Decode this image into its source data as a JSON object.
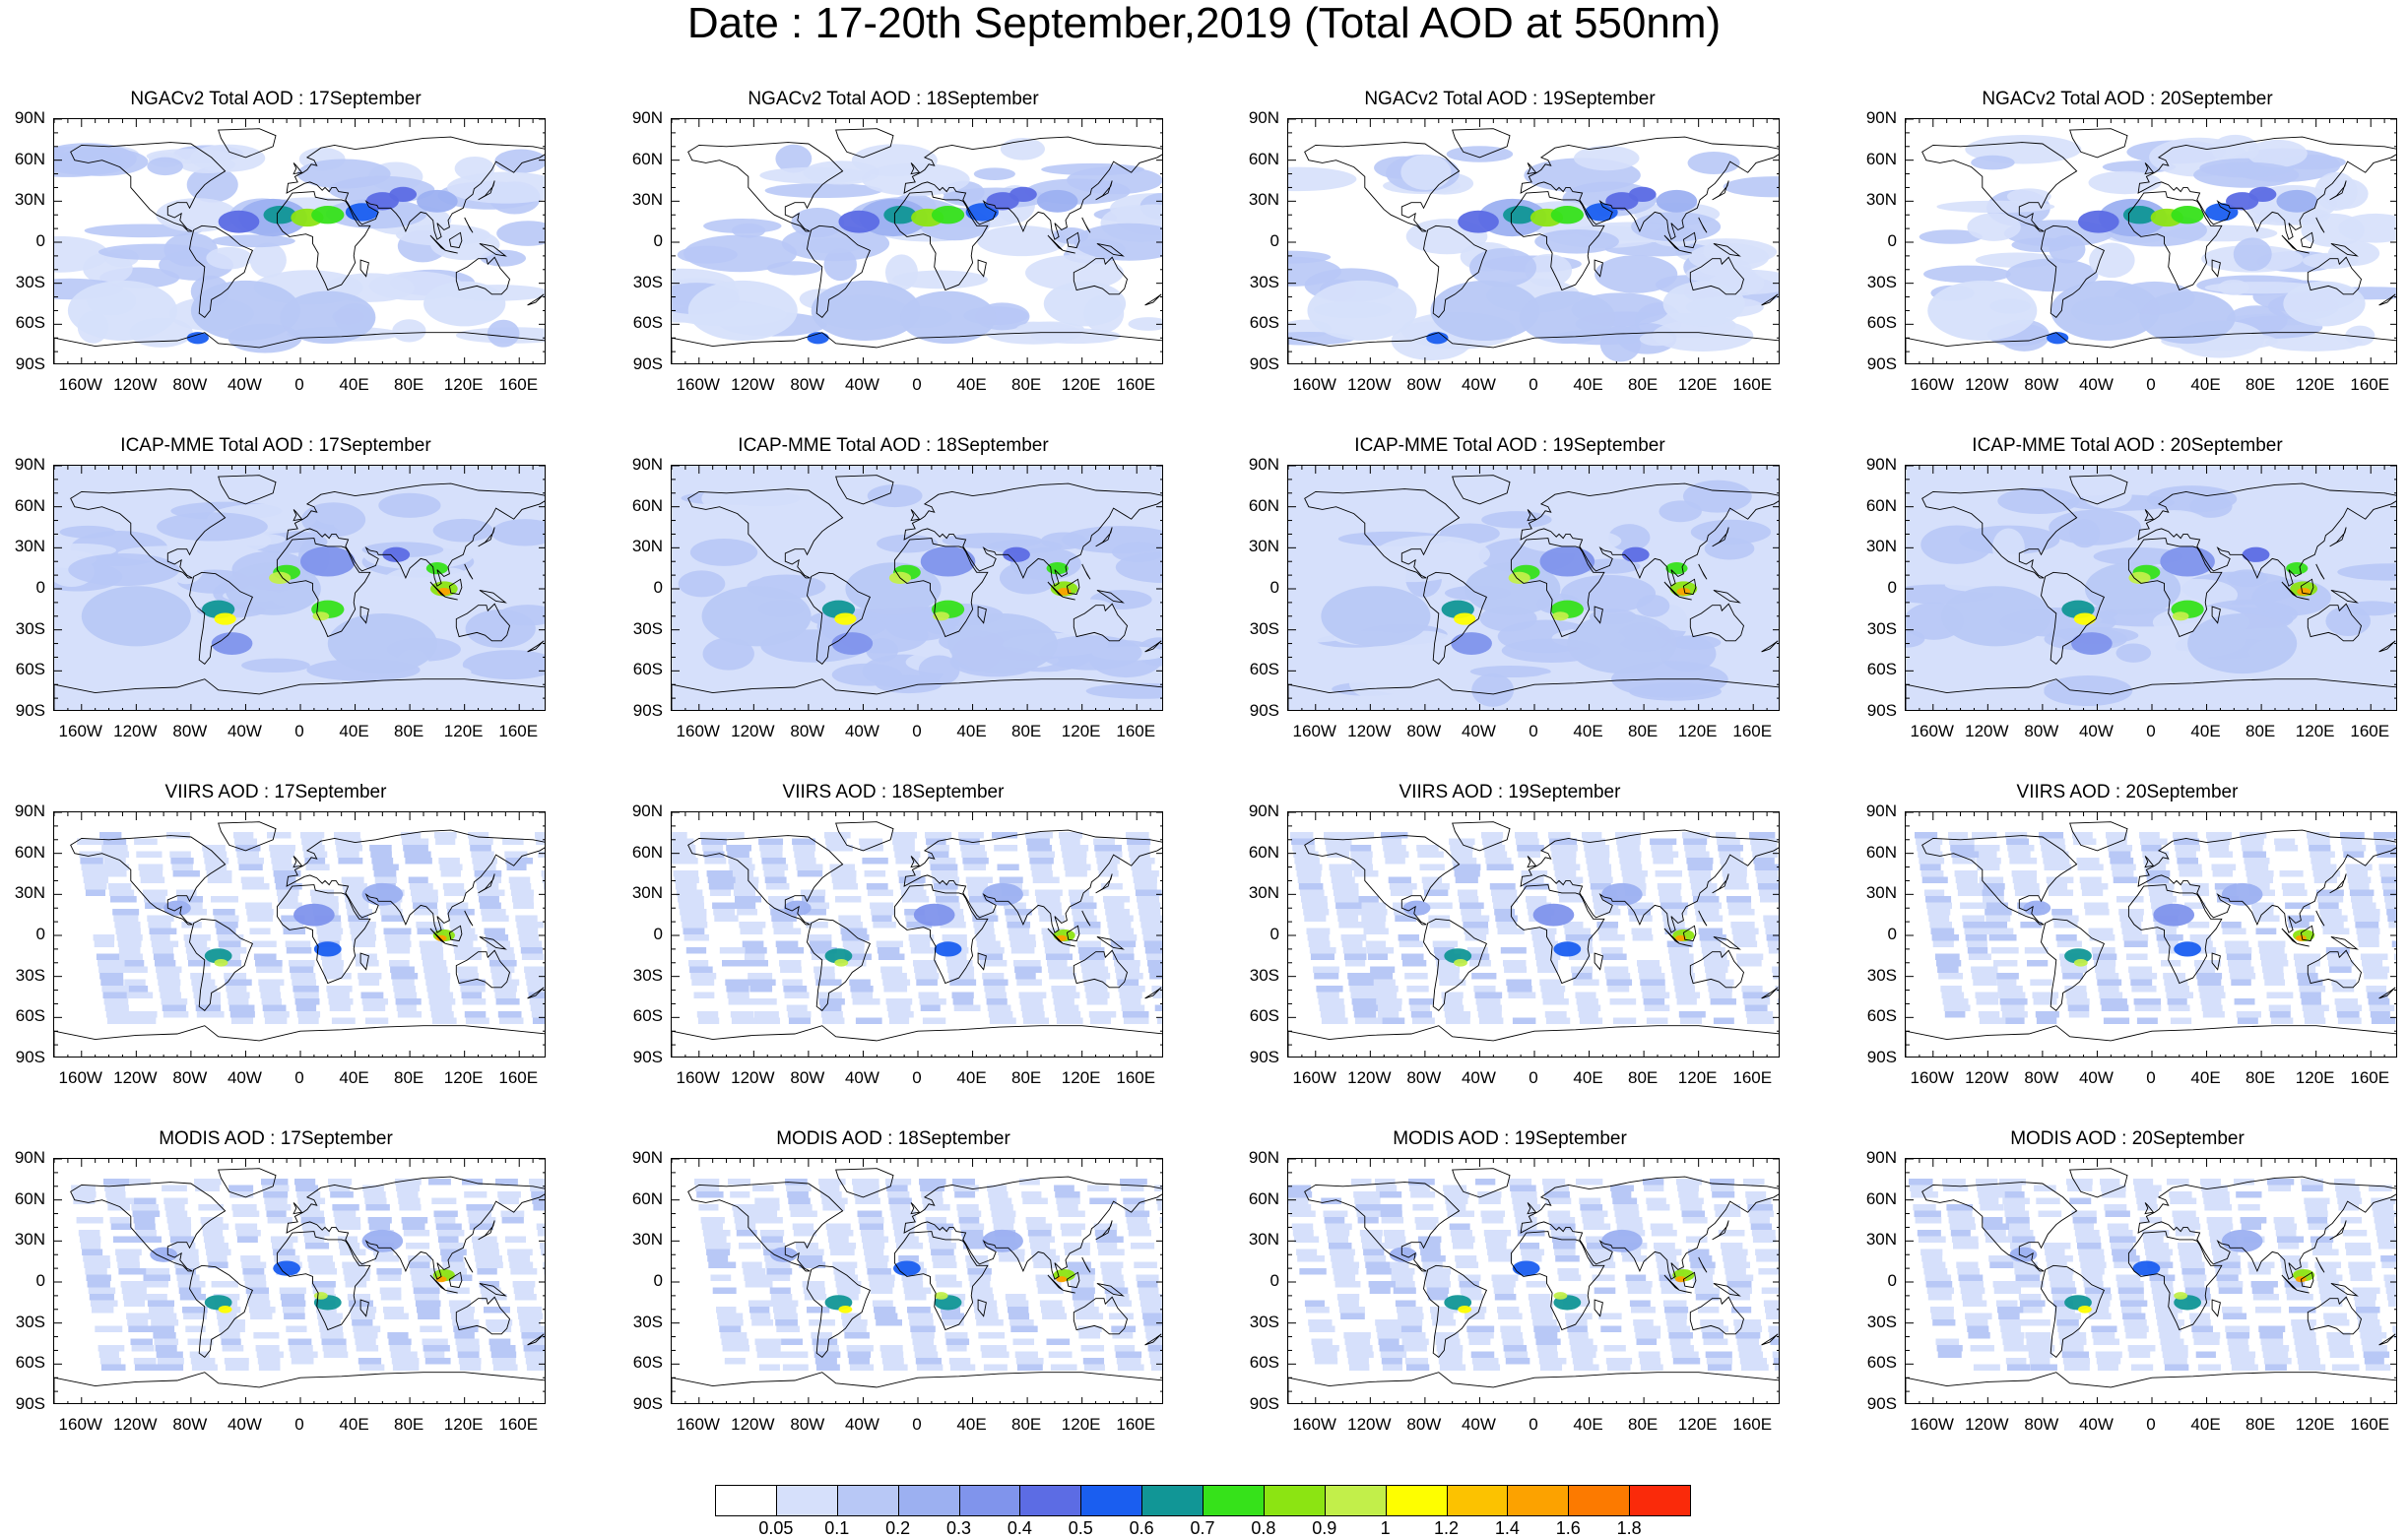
{
  "title": "Date : 17-20th September,2019 (Total AOD at 550nm)",
  "lat_ticks": [
    "90N",
    "60N",
    "30N",
    "0",
    "30S",
    "60S",
    "90S"
  ],
  "lon_ticks": [
    "160W",
    "120W",
    "80W",
    "40W",
    "0",
    "40E",
    "80E",
    "120E",
    "160E"
  ],
  "panels": [
    {
      "title": "NGACv2 Total AOD : 17September",
      "row": 0,
      "col": 0,
      "source": "NGACv2",
      "date": "17September"
    },
    {
      "title": "NGACv2 Total AOD : 18September",
      "row": 0,
      "col": 1,
      "source": "NGACv2",
      "date": "18September"
    },
    {
      "title": "NGACv2 Total AOD : 19September",
      "row": 0,
      "col": 2,
      "source": "NGACv2",
      "date": "19September"
    },
    {
      "title": "NGACv2 Total AOD : 20September",
      "row": 0,
      "col": 3,
      "source": "NGACv2",
      "date": "20September"
    },
    {
      "title": "ICAP-MME Total AOD : 17September",
      "row": 1,
      "col": 0,
      "source": "ICAP-MME",
      "date": "17September"
    },
    {
      "title": "ICAP-MME Total AOD : 18September",
      "row": 1,
      "col": 1,
      "source": "ICAP-MME",
      "date": "18September"
    },
    {
      "title": "ICAP-MME Total AOD : 19September",
      "row": 1,
      "col": 2,
      "source": "ICAP-MME",
      "date": "19September"
    },
    {
      "title": "ICAP-MME Total AOD : 20September",
      "row": 1,
      "col": 3,
      "source": "ICAP-MME",
      "date": "20September"
    },
    {
      "title": "VIIRS AOD : 17September",
      "row": 2,
      "col": 0,
      "source": "VIIRS",
      "date": "17September"
    },
    {
      "title": "VIIRS AOD : 18September",
      "row": 2,
      "col": 1,
      "source": "VIIRS",
      "date": "18September"
    },
    {
      "title": "VIIRS AOD : 19September",
      "row": 2,
      "col": 2,
      "source": "VIIRS",
      "date": "19September"
    },
    {
      "title": "VIIRS AOD : 20September",
      "row": 2,
      "col": 3,
      "source": "VIIRS",
      "date": "20September"
    },
    {
      "title": "MODIS AOD : 17September",
      "row": 3,
      "col": 0,
      "source": "MODIS",
      "date": "17September"
    },
    {
      "title": "MODIS AOD : 18September",
      "row": 3,
      "col": 1,
      "source": "MODIS",
      "date": "18September"
    },
    {
      "title": "MODIS AOD : 19September",
      "row": 3,
      "col": 2,
      "source": "MODIS",
      "date": "19September"
    },
    {
      "title": "MODIS AOD : 20September",
      "row": 3,
      "col": 3,
      "source": "MODIS",
      "date": "20September"
    }
  ],
  "colorbar": {
    "labels": [
      "0.05",
      "0.1",
      "0.2",
      "0.3",
      "0.4",
      "0.5",
      "0.6",
      "0.7",
      "0.8",
      "0.9",
      "1",
      "1.2",
      "1.4",
      "1.6",
      "1.8"
    ],
    "colors": [
      "#ffffff",
      "#d6e0fb",
      "#b8c8f6",
      "#9cb0f1",
      "#8094ec",
      "#5c6ce4",
      "#1a5ef0",
      "#119696",
      "#36e21a",
      "#8ce412",
      "#c2ef4a",
      "#fefe00",
      "#fcc200",
      "#fca200",
      "#fc7a00",
      "#fa2a0a"
    ]
  },
  "map_colors": {
    "land_outline": "#000000",
    "low_aod": "#d6e0fb",
    "mid_aod": "#8094ec",
    "high_aod": "#fa2a0a"
  }
}
